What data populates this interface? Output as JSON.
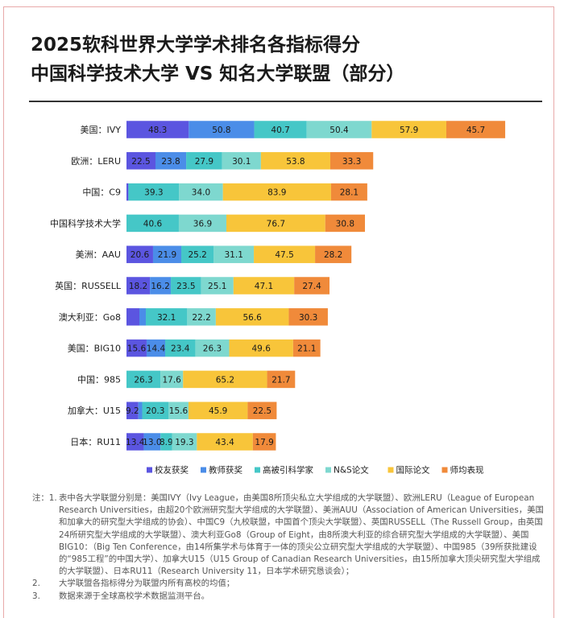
{
  "title_line1": "2025软科世界大学学术排名各指标得分",
  "title_line2": "中国科学技术大学 VS 知名大学联盟（部分）",
  "chart_data": {
    "type": "bar",
    "orientation": "horizontal",
    "stacked": true,
    "categories": [
      "美国：IVY",
      "欧洲：LERU",
      "中国：C9",
      "中国科学技术大学",
      "美洲：AAU",
      "英国：RUSSELL",
      "澳大利亚：Go8",
      "美国：BIG10",
      "中国：985",
      "加拿大：U15",
      "日本：RU11"
    ],
    "series": [
      {
        "name": "校友获奖",
        "color": "#5b55e0",
        "values": [
          48.3,
          22.5,
          1.5,
          0,
          20.6,
          18.2,
          10.0,
          15.6,
          0,
          9.2,
          13.4
        ],
        "labels": [
          "48.3",
          "22.5",
          "",
          "",
          "20.6",
          "18.2",
          "",
          "15.6",
          "",
          "9.2",
          "13.4"
        ]
      },
      {
        "name": "教师获奖",
        "color": "#4b8de8",
        "values": [
          50.8,
          23.8,
          0,
          0,
          21.9,
          16.2,
          5.0,
          14.4,
          0,
          3.0,
          13.0
        ],
        "labels": [
          "50.8",
          "23.8",
          "",
          "",
          "21.9",
          "16.2",
          "",
          "14.4",
          "",
          "",
          "13.0"
        ]
      },
      {
        "name": "高被引科学家",
        "color": "#45c7c7",
        "values": [
          40.7,
          27.9,
          39.3,
          40.6,
          25.2,
          23.5,
          32.1,
          23.4,
          26.3,
          20.3,
          8.9
        ],
        "labels": [
          "40.7",
          "27.9",
          "39.3",
          "40.6",
          "25.2",
          "23.5",
          "32.1",
          "23.4",
          "26.3",
          "20.3",
          "8.9"
        ]
      },
      {
        "name": "N&S论文",
        "color": "#7ed8cf",
        "values": [
          50.4,
          30.1,
          34.0,
          36.9,
          31.1,
          25.1,
          22.2,
          26.3,
          17.6,
          15.6,
          19.3
        ],
        "labels": [
          "50.4",
          "30.1",
          "34.0",
          "36.9",
          "31.1",
          "25.1",
          "22.2",
          "26.3",
          "17.6",
          "15.6",
          "19.3"
        ]
      },
      {
        "name": "国际论文",
        "color": "#f8c53a",
        "values": [
          57.9,
          53.8,
          83.9,
          76.7,
          47.5,
          47.1,
          56.6,
          49.6,
          65.2,
          45.9,
          43.4
        ],
        "labels": [
          "57.9",
          "53.8",
          "83.9",
          "76.7",
          "47.5",
          "47.1",
          "56.6",
          "49.6",
          "65.2",
          "45.9",
          "43.4"
        ]
      },
      {
        "name": "师均表现",
        "color": "#f08a3a",
        "values": [
          45.7,
          33.3,
          28.1,
          30.8,
          28.2,
          27.4,
          30.3,
          21.1,
          21.7,
          22.5,
          17.9
        ],
        "labels": [
          "45.7",
          "33.3",
          "28.1",
          "30.8",
          "28.2",
          "27.4",
          "30.3",
          "21.1",
          "21.7",
          "22.5",
          "17.9"
        ]
      }
    ],
    "legend_position": "bottom",
    "grid": false
  },
  "notes": [
    {
      "lead": "注：1.",
      "text": "表中各大学联盟分别是：美国IVY（Ivy League，由美国8所顶尖私立大学组成的大学联盟）、欧洲LERU（League of European Research Universities，由超20个欧洲研究型大学组成的大学联盟）、美洲AUU（Association of American Universities，美国和加拿大的研究型大学组成的协会）、中国C9（九校联盟，中国首个顶尖大学联盟）、英国RUSSELL（The Russell Group，由英国24所研究型大学组成的大学联盟）、澳大利亚Go8（Group of Eight，由8所澳大利亚的综合研究型大学组成的大学联盟）、美国BIG10：（Big Ten Conference，由14所集学术与体育于一体的顶尖公立研究型大学组成的大学联盟）、中国985（39所获批建设的“985工程”的中国大学）、加拿大U15（U15 Group of Canadian Research Universities，由15所加拿大顶尖研究型大学组成的大学联盟）、日本RU11（Research University 11，日本学术研究恳谈会）；"
    },
    {
      "lead": "2.",
      "text": "大学联盟各指标得分为联盟内所有高校的均值；"
    },
    {
      "lead": "3.",
      "text": "数据来源于全球高校学术数据监测平台。"
    }
  ]
}
